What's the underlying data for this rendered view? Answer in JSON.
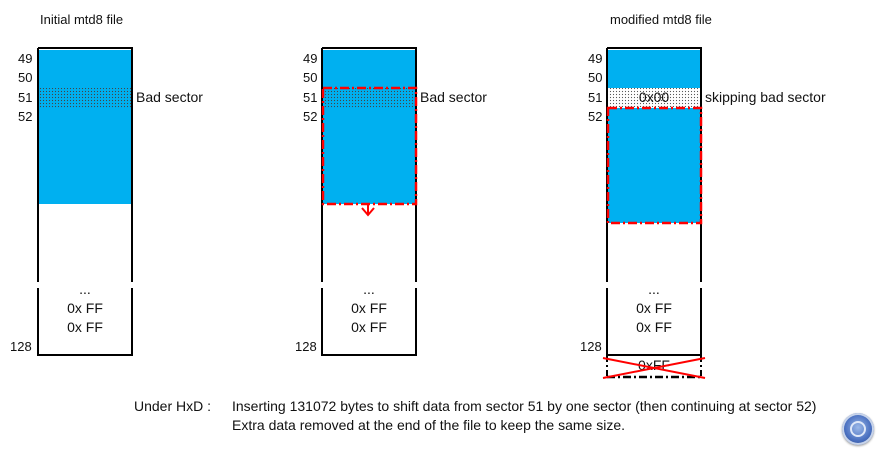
{
  "colors": {
    "data_fill": "#00b0f0",
    "block": "#000000",
    "highlight": "#ff0000"
  },
  "columns": [
    {
      "title": "Initial mtd8 file",
      "sector_numbers": [
        "49",
        "50",
        "51",
        "52"
      ],
      "end_sector": "128",
      "label": "Bad sector",
      "cells": [
        "...",
        "0x FF",
        "0x FF"
      ]
    },
    {
      "title": "",
      "sector_numbers": [
        "49",
        "50",
        "51",
        "52"
      ],
      "end_sector": "128",
      "label": "Bad sector",
      "cells": [
        "...",
        "0x FF",
        "0x FF"
      ]
    },
    {
      "title": "modified mtd8 file",
      "sector_numbers": [
        "49",
        "50",
        "51",
        "52"
      ],
      "end_sector": "128",
      "label": "skipping bad sector",
      "inserted_value": "0x00",
      "cells": [
        "...",
        "0x FF",
        "0x FF"
      ],
      "removed_value": "0xFF"
    }
  ],
  "footer": {
    "prefix": "Under HxD :",
    "line1": "Inserting 131072 bytes to shift data from sector 51 by one sector (then continuing at sector 52)",
    "line2": "Extra data removed at the end of the file to keep the same size."
  }
}
